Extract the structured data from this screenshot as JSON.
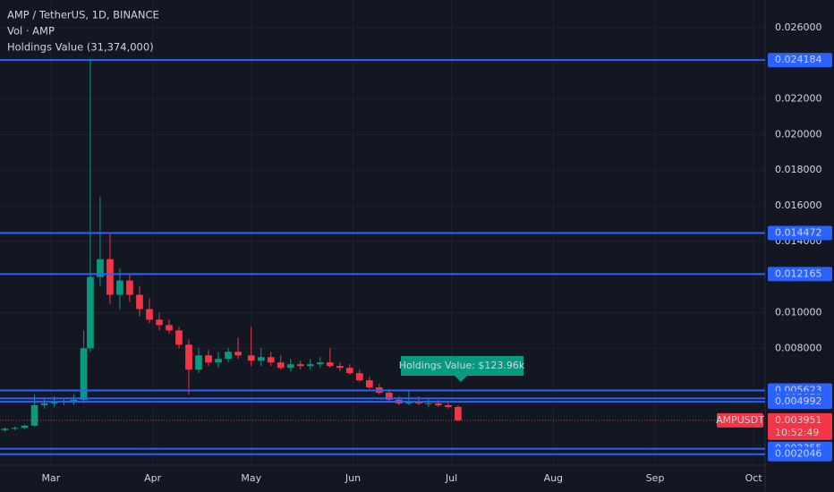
{
  "chart_data": {
    "type": "candlestick",
    "title": "AMP / TetherUS, 1D, BINANCE",
    "indicators": [
      "Vol · AMP",
      "Holdings Value (31,374,000)"
    ],
    "annotation": "Holdings Value: $123.96k",
    "up_color": "#089981",
    "down_color": "#f23645",
    "level_color": "#2962ff",
    "xlim": [
      -15.5,
      217.5
    ],
    "xticks": [
      {
        "value": 0,
        "label": "Mar"
      },
      {
        "value": 31,
        "label": "Apr"
      },
      {
        "value": 61,
        "label": "May"
      },
      {
        "value": 92,
        "label": "Jun"
      },
      {
        "value": 122,
        "label": "Jul"
      },
      {
        "value": 153,
        "label": "Aug"
      },
      {
        "value": 184,
        "label": "Sep"
      },
      {
        "value": 214,
        "label": "Oct"
      }
    ],
    "ylim": [
      0.00143,
      0.02756
    ],
    "yticks": [
      {
        "value": 0.026,
        "label": "0.026000"
      },
      {
        "value": 0.024,
        "label": "0.024000"
      },
      {
        "value": 0.022,
        "label": "0.022000"
      },
      {
        "value": 0.02,
        "label": "0.020000"
      },
      {
        "value": 0.018,
        "label": "0.018000"
      },
      {
        "value": 0.016,
        "label": "0.016000"
      },
      {
        "value": 0.014,
        "label": "0.014000"
      },
      {
        "value": 0.01,
        "label": "0.010000"
      },
      {
        "value": 0.008,
        "label": "0.008000"
      }
    ],
    "grid": true,
    "levels": [
      0.024184,
      0.014472,
      0.012165,
      0.005623,
      0.005179,
      0.004992,
      0.002355,
      0.002046
    ],
    "current": {
      "symbol": "AMPUSDT",
      "value": 0.003951,
      "countdown": "10:52:49"
    },
    "x": [
      -14,
      -11,
      -8,
      -5,
      -2,
      1,
      4,
      7,
      10,
      12,
      15,
      18,
      21,
      24,
      27,
      30,
      33,
      36,
      39,
      42,
      45,
      48,
      51,
      54,
      57,
      61,
      64,
      67,
      70,
      73,
      76,
      79,
      82,
      85,
      88,
      91,
      94,
      97,
      100,
      103,
      106,
      109,
      112,
      115,
      118,
      121,
      124
    ],
    "open": [
      0.0034,
      0.00348,
      0.00352,
      0.00365,
      0.0048,
      0.0049,
      0.005,
      0.00495,
      0.0051,
      0.008,
      0.012,
      0.013,
      0.011,
      0.0118,
      0.011,
      0.0102,
      0.0096,
      0.0093,
      0.009,
      0.0082,
      0.0068,
      0.0076,
      0.0072,
      0.0074,
      0.0078,
      0.0076,
      0.0073,
      0.0075,
      0.0072,
      0.0069,
      0.0071,
      0.007,
      0.0071,
      0.0072,
      0.007,
      0.0069,
      0.0066,
      0.0062,
      0.0058,
      0.0055,
      0.0051,
      0.0049,
      0.005,
      0.0049,
      0.0049,
      0.0048,
      0.0047
    ],
    "high": [
      0.00355,
      0.0036,
      0.0037,
      0.0054,
      0.0052,
      0.0053,
      0.0052,
      0.0054,
      0.009,
      0.02418,
      0.0165,
      0.0144,
      0.0125,
      0.0122,
      0.0115,
      0.0108,
      0.01,
      0.0096,
      0.0092,
      0.0085,
      0.008,
      0.0079,
      0.0078,
      0.008,
      0.0086,
      0.0092,
      0.008,
      0.0078,
      0.0076,
      0.0074,
      0.0073,
      0.0074,
      0.0075,
      0.008,
      0.0072,
      0.0071,
      0.0068,
      0.0064,
      0.006,
      0.0057,
      0.0053,
      0.0056,
      0.0053,
      0.0052,
      0.0051,
      0.005,
      0.0048
    ],
    "low": [
      0.00332,
      0.0034,
      0.00345,
      0.0036,
      0.0046,
      0.0047,
      0.0048,
      0.0048,
      0.0049,
      0.0078,
      0.0115,
      0.0105,
      0.0102,
      0.0106,
      0.0098,
      0.0094,
      0.009,
      0.0088,
      0.008,
      0.0054,
      0.0066,
      0.007,
      0.0069,
      0.0072,
      0.0074,
      0.007,
      0.007,
      0.007,
      0.0068,
      0.0067,
      0.0068,
      0.0068,
      0.0069,
      0.0069,
      0.0067,
      0.0065,
      0.0061,
      0.0057,
      0.0054,
      0.005,
      0.0048,
      0.0048,
      0.0048,
      0.0047,
      0.0047,
      0.0046,
      0.0039
    ],
    "close": [
      0.00348,
      0.00352,
      0.00365,
      0.0048,
      0.0049,
      0.005,
      0.00495,
      0.0051,
      0.008,
      0.012,
      0.013,
      0.011,
      0.0118,
      0.011,
      0.0102,
      0.0096,
      0.0093,
      0.009,
      0.0082,
      0.0068,
      0.0076,
      0.0072,
      0.0074,
      0.0078,
      0.0076,
      0.0073,
      0.0075,
      0.0072,
      0.0069,
      0.0071,
      0.007,
      0.0071,
      0.0072,
      0.007,
      0.0069,
      0.0066,
      0.0062,
      0.0058,
      0.0055,
      0.0051,
      0.0049,
      0.005,
      0.0049,
      0.0049,
      0.0048,
      0.0047,
      0.003951
    ]
  }
}
